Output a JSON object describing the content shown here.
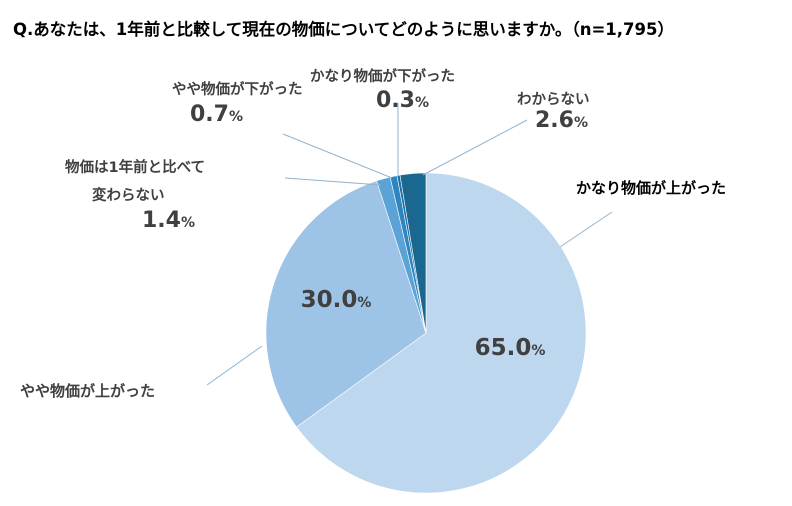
{
  "chart_data": {
    "type": "pie",
    "title": "Q.あなたは、1年前と比較して現在の物価についてどのように思いますか。（n=1,795）",
    "slices": [
      {
        "label": "かなり物価が上がった",
        "value": 65.0,
        "display": "65.0",
        "color": "#bdd7ee",
        "label_color": "#000000"
      },
      {
        "label": "やや物価が上がった",
        "value": 30.0,
        "display": "30.0",
        "color": "#9dc3e6",
        "label_color": "#404040"
      },
      {
        "label_lines": [
          "物価は1年前と比べて",
          "変わらない"
        ],
        "value": 1.4,
        "display": "1.4",
        "color": "#5ba3d6",
        "label_color": "#404040"
      },
      {
        "label": "やや物価が下がった",
        "value": 0.7,
        "display": "0.7",
        "color": "#2e86c1",
        "label_color": "#404040"
      },
      {
        "label": "かなり物価が下がった",
        "value": 0.3,
        "display": "0.3",
        "color": "#1f6fa8",
        "label_color": "#404040"
      },
      {
        "label": "わからない",
        "value": 2.6,
        "display": "2.6",
        "color": "#1a6890",
        "label_color": "#404040"
      }
    ],
    "value_suffix": "%",
    "leader_line_color": "#8fb5d3"
  }
}
